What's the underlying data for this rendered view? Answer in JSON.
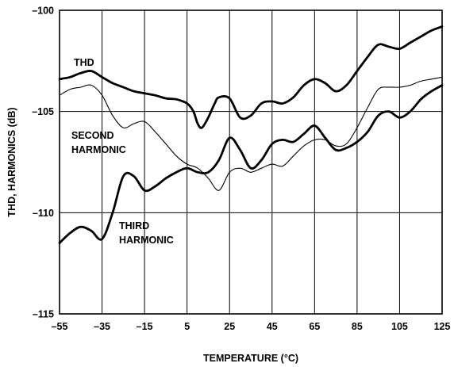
{
  "chart_data": {
    "type": "line",
    "title": "",
    "xlabel": "TEMPERATURE (°C)",
    "ylabel": "THD, HARMONICS (dB)",
    "xlim": [
      -55,
      125
    ],
    "ylim": [
      -115,
      -100
    ],
    "xticks": [
      "–55",
      "–35",
      "–15",
      "5",
      "25",
      "45",
      "65",
      "85",
      "105",
      "125"
    ],
    "yticks": [
      "–100",
      "–105",
      "–110",
      "–115"
    ],
    "grid": true,
    "annotations": [
      {
        "text": "THD",
        "series": 0
      },
      {
        "text": "SECOND",
        "series": 1
      },
      {
        "text": "HARMONIC",
        "series": 1
      },
      {
        "text": "THIRD",
        "series": 2
      },
      {
        "text": "HARMONIC",
        "series": 2
      }
    ],
    "series": [
      {
        "stroke": "thick",
        "x": [
          -55,
          -50,
          -45,
          -40,
          -35,
          -30,
          -25,
          -20,
          -15,
          -10,
          -5,
          0,
          5,
          8,
          10,
          12,
          15,
          18,
          20,
          25,
          30,
          35,
          40,
          45,
          50,
          55,
          60,
          65,
          70,
          75,
          80,
          85,
          90,
          95,
          100,
          105,
          110,
          115,
          120,
          125
        ],
        "y": [
          -103.4,
          -103.3,
          -103.1,
          -103.0,
          -103.3,
          -103.6,
          -103.8,
          -104.0,
          -104.1,
          -104.2,
          -104.35,
          -104.4,
          -104.6,
          -105.0,
          -105.6,
          -105.8,
          -105.3,
          -104.6,
          -104.3,
          -104.35,
          -105.3,
          -105.2,
          -104.6,
          -104.5,
          -104.6,
          -104.3,
          -103.7,
          -103.4,
          -103.6,
          -104.0,
          -103.7,
          -103.0,
          -102.3,
          -101.7,
          -101.8,
          -101.9,
          -101.6,
          -101.3,
          -101.0,
          -100.8
        ]
      },
      {
        "stroke": "thin",
        "x": [
          -55,
          -50,
          -45,
          -40,
          -35,
          -30,
          -25,
          -20,
          -15,
          -10,
          -5,
          0,
          5,
          10,
          15,
          20,
          25,
          30,
          35,
          40,
          45,
          50,
          55,
          60,
          65,
          70,
          75,
          80,
          85,
          90,
          95,
          100,
          105,
          110,
          115,
          120,
          125
        ],
        "y": [
          -104.2,
          -103.9,
          -103.8,
          -103.7,
          -104.2,
          -105.2,
          -105.8,
          -105.6,
          -105.5,
          -106.0,
          -106.6,
          -107.2,
          -107.6,
          -107.8,
          -108.3,
          -108.9,
          -108.0,
          -107.8,
          -108.0,
          -107.8,
          -107.6,
          -107.7,
          -107.2,
          -106.7,
          -106.4,
          -106.4,
          -106.7,
          -106.6,
          -105.8,
          -104.8,
          -103.9,
          -103.8,
          -103.8,
          -103.7,
          -103.5,
          -103.4,
          -103.3
        ]
      },
      {
        "stroke": "thick",
        "x": [
          -55,
          -50,
          -45,
          -40,
          -35,
          -30,
          -25,
          -20,
          -15,
          -10,
          -5,
          0,
          5,
          10,
          15,
          20,
          25,
          30,
          35,
          40,
          45,
          50,
          55,
          60,
          65,
          70,
          75,
          80,
          85,
          90,
          95,
          100,
          105,
          110,
          115,
          120,
          125
        ],
        "y": [
          -111.5,
          -111.0,
          -110.7,
          -110.9,
          -111.3,
          -110.0,
          -108.2,
          -108.2,
          -108.9,
          -108.7,
          -108.3,
          -108.0,
          -107.8,
          -108.0,
          -108.0,
          -107.4,
          -106.3,
          -106.9,
          -107.8,
          -107.4,
          -106.6,
          -106.4,
          -106.5,
          -106.1,
          -105.7,
          -106.3,
          -106.9,
          -106.8,
          -106.5,
          -106.0,
          -105.2,
          -105.0,
          -105.3,
          -105.0,
          -104.4,
          -104.0,
          -103.7
        ]
      }
    ]
  }
}
